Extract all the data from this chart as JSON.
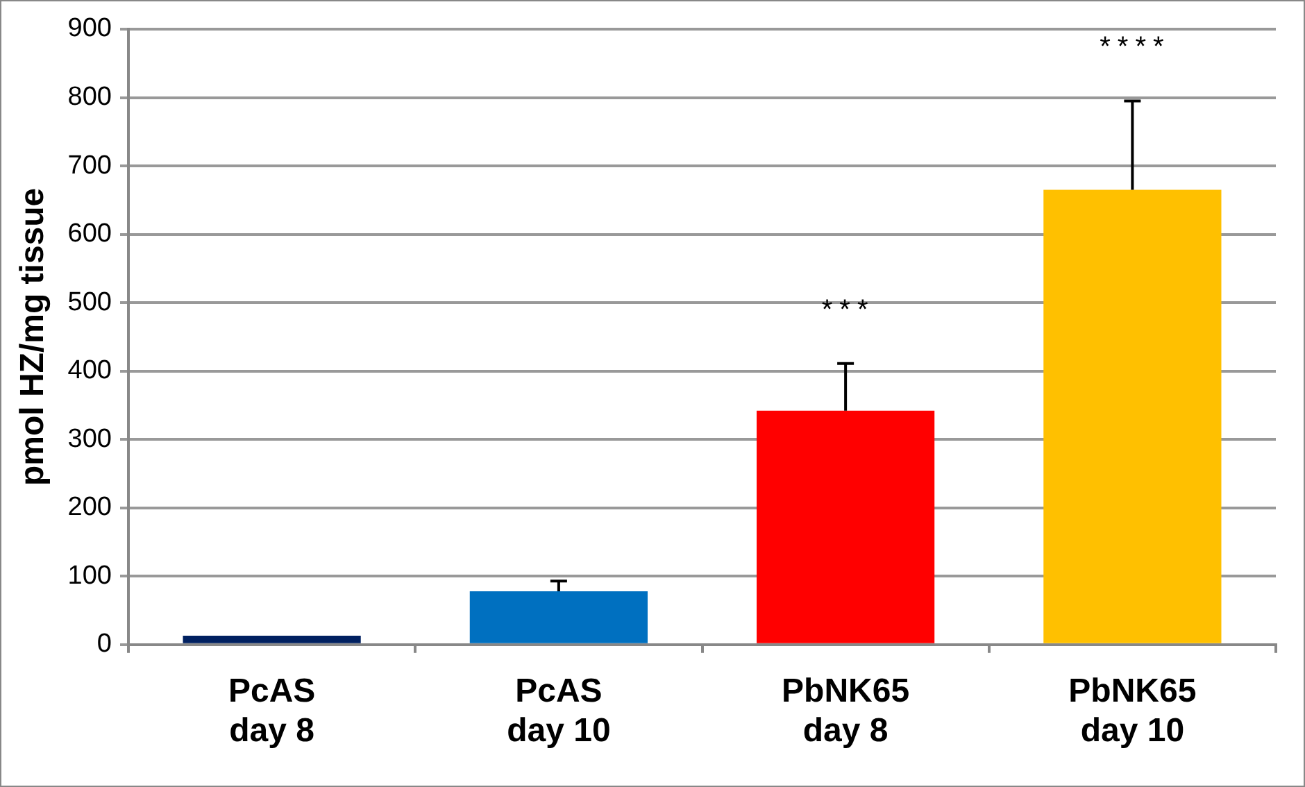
{
  "chart_data": {
    "type": "bar",
    "ylabel": "pmol HZ/mg tissue",
    "categories": [
      "PcAS\nday 8",
      "PcAS\nday 10",
      "PbNK65\nday 8",
      "PbNK65\nday 10"
    ],
    "values": [
      13,
      78,
      342,
      665
    ],
    "colors": [
      "#002060",
      "#0070c0",
      "#ff0000",
      "#ffc000"
    ],
    "errors": [
      null,
      [
        78,
        93
      ],
      [
        342,
        411
      ],
      [
        665,
        795
      ]
    ],
    "ylim": [
      0,
      900
    ],
    "yticks": [
      0,
      100,
      200,
      300,
      400,
      500,
      600,
      700,
      800,
      900
    ],
    "grid": "y",
    "legend": false,
    "annotations": [
      "***",
      "****"
    ]
  }
}
